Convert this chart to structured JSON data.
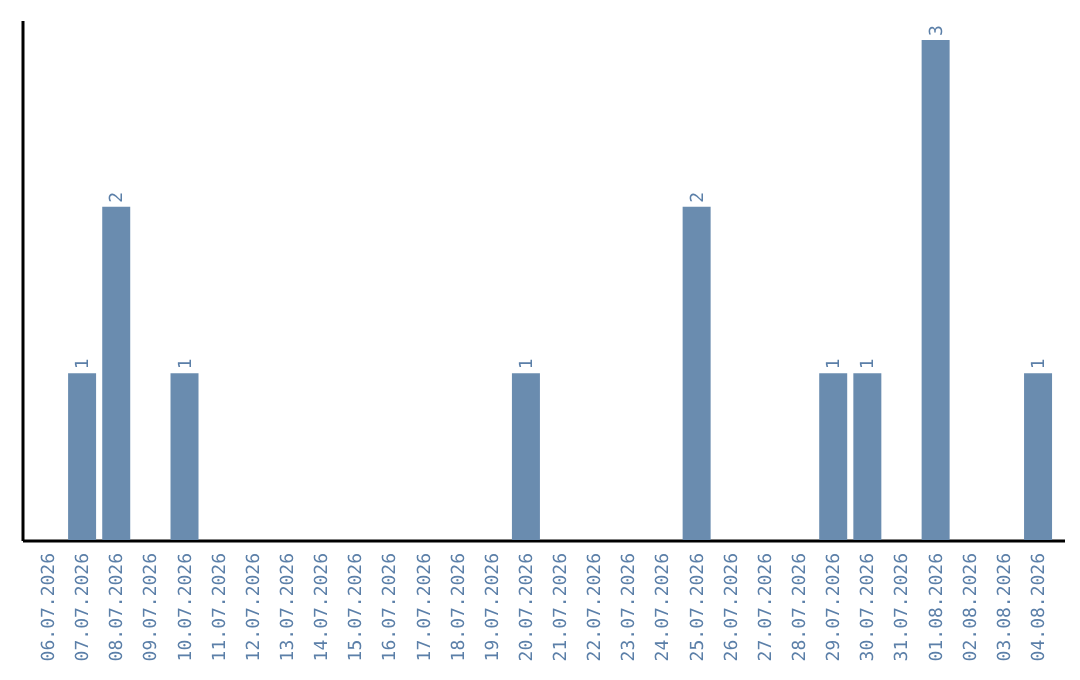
{
  "chart_data": {
    "type": "bar",
    "categories": [
      "06.07.2026",
      "07.07.2026",
      "08.07.2026",
      "09.07.2026",
      "10.07.2026",
      "11.07.2026",
      "12.07.2026",
      "13.07.2026",
      "14.07.2026",
      "15.07.2026",
      "16.07.2026",
      "17.07.2026",
      "18.07.2026",
      "19.07.2026",
      "20.07.2026",
      "21.07.2026",
      "22.07.2026",
      "23.07.2026",
      "24.07.2026",
      "25.07.2026",
      "26.07.2026",
      "27.07.2026",
      "28.07.2026",
      "29.07.2026",
      "30.07.2026",
      "31.07.2026",
      "01.08.2026",
      "02.08.2026",
      "03.08.2026",
      "04.08.2026"
    ],
    "values": [
      0,
      1,
      2,
      0,
      1,
      0,
      0,
      0,
      0,
      0,
      0,
      0,
      0,
      0,
      1,
      0,
      0,
      0,
      0,
      2,
      0,
      0,
      0,
      1,
      1,
      0,
      3,
      0,
      0,
      1
    ],
    "value_labels": [
      null,
      "1",
      "2",
      null,
      "1",
      null,
      null,
      null,
      null,
      null,
      null,
      null,
      null,
      null,
      "1",
      null,
      null,
      null,
      null,
      "2",
      null,
      null,
      null,
      "1",
      "1",
      null,
      "3",
      null,
      null,
      "1"
    ],
    "color": "#6a8caf",
    "ylim": [
      0,
      3.12
    ],
    "tick_labels": "x",
    "grid": false
  }
}
